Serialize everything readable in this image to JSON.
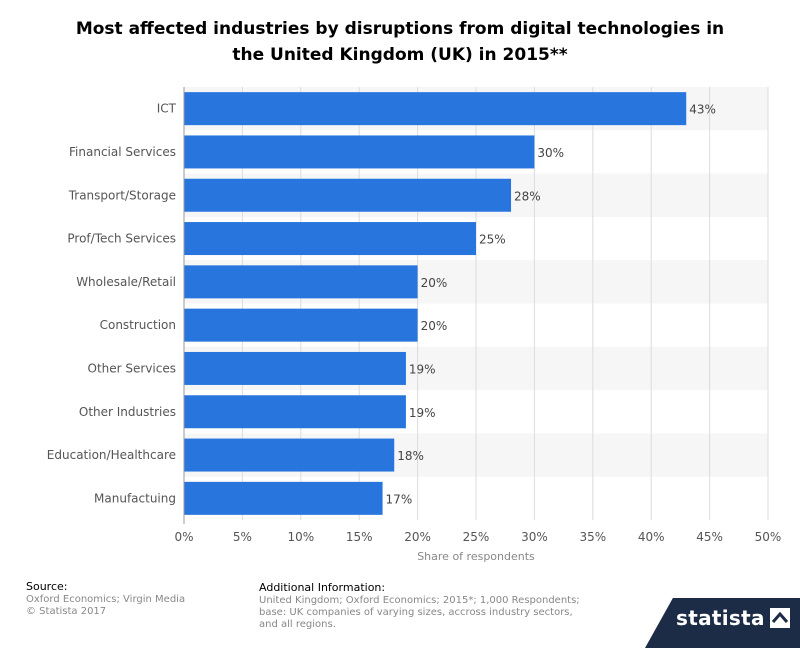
{
  "title": "Most affected industries by disruptions from digital technologies in\nthe United Kingdom (UK) in 2015**",
  "chart_data": {
    "type": "bar",
    "orientation": "horizontal",
    "title": "Most affected industries by disruptions from digital technologies in the United Kingdom (UK) in 2015**",
    "categories": [
      "ICT",
      "Financial Services",
      "Transport/Storage",
      "Prof/Tech Services",
      "Wholesale/Retail",
      "Construction",
      "Other Services",
      "Other Industries",
      "Education/Healthcare",
      "Manufactuing"
    ],
    "values": [
      43,
      30,
      28,
      25,
      20,
      20,
      19,
      19,
      18,
      17
    ],
    "value_labels": [
      "43%",
      "30%",
      "28%",
      "25%",
      "20%",
      "20%",
      "19%",
      "19%",
      "18%",
      "17%"
    ],
    "xlabel": "Share of respondents",
    "ylabel": "",
    "xlim": [
      0,
      50
    ],
    "xticks": [
      0,
      5,
      10,
      15,
      20,
      25,
      30,
      35,
      40,
      45,
      50
    ],
    "xtick_labels": [
      "0%",
      "5%",
      "10%",
      "15%",
      "20%",
      "25%",
      "30%",
      "35%",
      "40%",
      "45%",
      "50%"
    ],
    "grid": true,
    "bar_color": "#2876dd"
  },
  "footer": {
    "source_heading": "Source:",
    "source_lines": [
      "Oxford Economics; Virgin Media",
      "© Statista 2017"
    ],
    "info_heading": "Additional Information:",
    "info_lines": [
      "United Kingdom; Oxford Economics; 2015*; 1,000 Respondents;",
      "base: UK companies of varying sizes, accross industry sectors,",
      "and all regions."
    ]
  },
  "logo": {
    "text": "statista",
    "icon": "statista-mark-icon"
  }
}
